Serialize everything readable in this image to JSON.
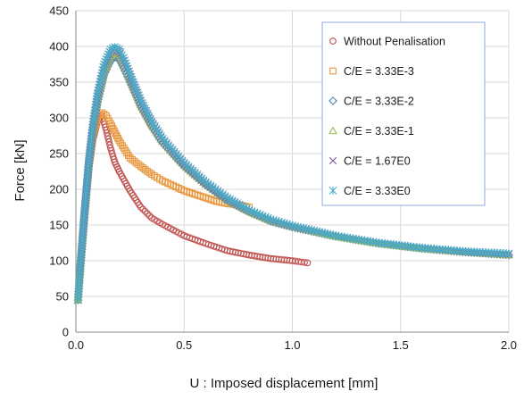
{
  "chart_data": {
    "type": "scatter",
    "title": "",
    "xlabel": "U : Imposed displacement [mm]",
    "ylabel": "Force [kN]",
    "xlim": [
      0,
      2
    ],
    "ylim": [
      0,
      450
    ],
    "xticks": [
      "0.0",
      "0.5",
      "1.0",
      "1.5",
      "2.0"
    ],
    "yticks": [
      "0",
      "50",
      "100",
      "150",
      "200",
      "250",
      "300",
      "350",
      "400",
      "450"
    ],
    "grid": true,
    "legend_position": "top-right",
    "series": [
      {
        "name": "Without Penalisation",
        "marker": "circle",
        "color": "#c0504d",
        "x": [
          0.01,
          0.02,
          0.04,
          0.06,
          0.08,
          0.1,
          0.12,
          0.14,
          0.16,
          0.18,
          0.2,
          0.25,
          0.3,
          0.35,
          0.4,
          0.45,
          0.5,
          0.6,
          0.7,
          0.8,
          0.9,
          1.0,
          1.07
        ],
        "y": [
          45,
          88,
          160,
          228,
          270,
          295,
          303,
          283,
          258,
          238,
          225,
          198,
          175,
          160,
          151,
          143,
          135,
          124,
          114,
          108,
          103,
          100,
          97
        ]
      },
      {
        "name": "C/E = 3.33E-3",
        "marker": "square",
        "color": "#e8963c",
        "x": [
          0.01,
          0.02,
          0.04,
          0.06,
          0.08,
          0.1,
          0.12,
          0.14,
          0.16,
          0.2,
          0.25,
          0.3,
          0.35,
          0.4,
          0.45,
          0.5,
          0.55,
          0.6,
          0.65,
          0.7,
          0.75,
          0.8
        ],
        "y": [
          45,
          88,
          163,
          233,
          278,
          300,
          307,
          303,
          292,
          268,
          244,
          232,
          221,
          212,
          205,
          198,
          193,
          188,
          183,
          180,
          178,
          175
        ]
      },
      {
        "name": "C/E = 3.33E-2",
        "marker": "diamond",
        "color": "#4f81bd",
        "x": [
          0.01,
          0.02,
          0.04,
          0.06,
          0.08,
          0.1,
          0.13,
          0.16,
          0.18,
          0.2,
          0.22,
          0.25,
          0.3,
          0.35,
          0.4,
          0.5,
          0.6,
          0.7,
          0.8,
          0.9,
          1.0,
          1.2,
          1.4,
          1.6,
          1.8,
          2.0
        ],
        "y": [
          45,
          88,
          165,
          236,
          285,
          322,
          360,
          380,
          385,
          383,
          370,
          350,
          315,
          288,
          265,
          232,
          206,
          184,
          168,
          155,
          147,
          134,
          124,
          117,
          112,
          108
        ]
      },
      {
        "name": "C/E = 3.33E-1",
        "marker": "triangle",
        "color": "#9bbb59",
        "x": [
          0.01,
          0.02,
          0.04,
          0.06,
          0.08,
          0.1,
          0.13,
          0.16,
          0.18,
          0.2,
          0.22,
          0.25,
          0.3,
          0.35,
          0.4,
          0.5,
          0.6,
          0.7,
          0.8,
          0.9,
          1.0,
          1.2,
          1.4,
          1.6,
          1.8,
          2.0
        ],
        "y": [
          45,
          88,
          167,
          238,
          288,
          327,
          366,
          387,
          391,
          389,
          376,
          355,
          318,
          290,
          267,
          233,
          207,
          185,
          169,
          156,
          148,
          134,
          124,
          117,
          112,
          108
        ]
      },
      {
        "name": "C/E = 1.67E0",
        "marker": "x",
        "color": "#8064a2",
        "x": [
          0.01,
          0.02,
          0.04,
          0.06,
          0.08,
          0.1,
          0.13,
          0.16,
          0.18,
          0.2,
          0.22,
          0.25,
          0.3,
          0.35,
          0.4,
          0.5,
          0.6,
          0.7,
          0.8,
          0.9,
          1.0,
          1.2,
          1.4,
          1.6,
          1.8,
          2.0
        ],
        "y": [
          45,
          89,
          168,
          240,
          291,
          331,
          371,
          392,
          396,
          393,
          380,
          358,
          321,
          293,
          269,
          235,
          208,
          186,
          170,
          157,
          148,
          135,
          125,
          118,
          112,
          109
        ]
      },
      {
        "name": "C/E = 3.33E0",
        "marker": "asterisk",
        "color": "#4bacc6",
        "x": [
          0.01,
          0.02,
          0.04,
          0.06,
          0.08,
          0.1,
          0.13,
          0.16,
          0.18,
          0.2,
          0.22,
          0.25,
          0.3,
          0.35,
          0.4,
          0.5,
          0.6,
          0.7,
          0.8,
          0.9,
          1.0,
          1.2,
          1.4,
          1.6,
          1.8,
          2.0
        ],
        "y": [
          45,
          90,
          170,
          242,
          294,
          334,
          375,
          396,
          399,
          396,
          384,
          361,
          324,
          295,
          271,
          237,
          210,
          188,
          171,
          158,
          149,
          135,
          125,
          118,
          113,
          110
        ]
      }
    ]
  }
}
